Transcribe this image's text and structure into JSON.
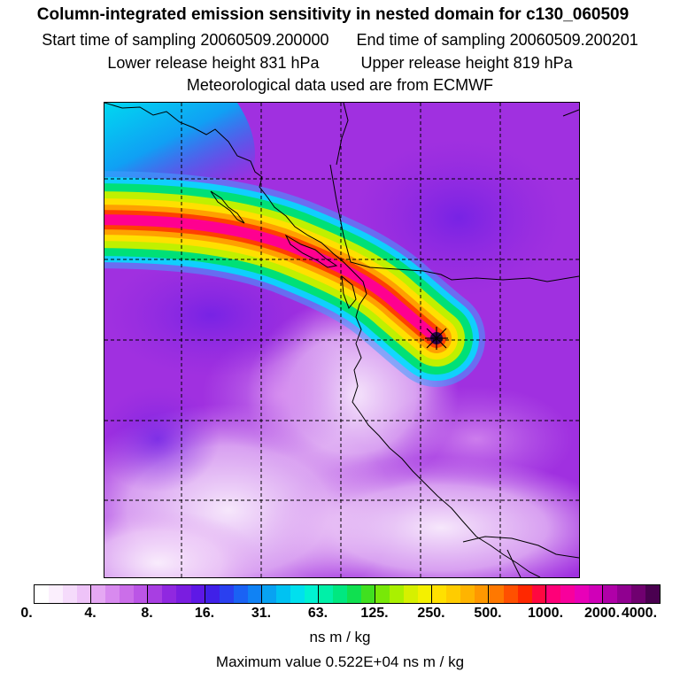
{
  "header": {
    "title": "Column-integrated emission sensitivity in nested domain for c130_060509",
    "start_time": "Start time of sampling 20060509.200000",
    "end_time": "End time of sampling 20060509.200201",
    "lower_release": "Lower release height  831 hPa",
    "upper_release": "Upper release height  819 hPa",
    "met_data": "Meteorological data used are from ECMWF"
  },
  "map": {
    "background_color": "#a030e0",
    "plume_colors": [
      "#40a0ff",
      "#00e0ff",
      "#00e070",
      "#c0f000",
      "#ffe000",
      "#ffa000",
      "#ff4000",
      "#ff0090"
    ],
    "source_marker_color": "#300050"
  },
  "colorbar": {
    "colors": [
      "#ffffff",
      "#fbeffd",
      "#f5dbfb",
      "#eec3f8",
      "#e5a8f3",
      "#d88aef",
      "#cb6ee9",
      "#bb55e6",
      "#a83ee2",
      "#9028e0",
      "#7a1de0",
      "#5e18e6",
      "#4020e8",
      "#2a40f0",
      "#1a62f4",
      "#1082f4",
      "#08a2f2",
      "#00c2f2",
      "#00e0ee",
      "#00f2d2",
      "#00f0a8",
      "#00e880",
      "#10e050",
      "#40e020",
      "#78e808",
      "#aaf000",
      "#d6f000",
      "#f4f000",
      "#ffe000",
      "#ffcc00",
      "#ffb400",
      "#ff9800",
      "#ff7800",
      "#ff5000",
      "#ff2800",
      "#ff0840",
      "#ff0078",
      "#f8009c",
      "#e800b8",
      "#d000b8",
      "#b000a8",
      "#900090",
      "#700070",
      "#4a0050"
    ],
    "tick_labels": [
      "0.",
      "4.",
      "8.",
      "16.",
      "31.",
      "63.",
      "125.",
      "250.",
      "500.",
      "1000.",
      "2000.",
      "4000."
    ],
    "units": "ns m / kg"
  },
  "footer": {
    "max_value": "Maximum value  0.522E+04 ns m / kg"
  }
}
